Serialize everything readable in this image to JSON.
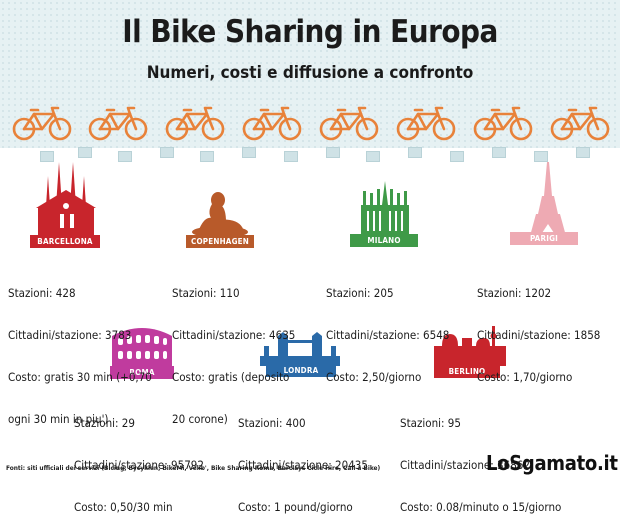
{
  "title": "Il Bike Sharing in Europa",
  "subtitle": "Numeri, costi e diffusione a confronto",
  "colors": {
    "bike": "#e8823a",
    "barcellona": "#c8252c",
    "copenhagen": "#b85a2a",
    "milano": "#3f9a48",
    "parigi": "#eeaab3",
    "roma": "#c03b9e",
    "londra": "#2a6aa8",
    "berlino": "#c8252c"
  },
  "cities": [
    {
      "name": "BARCELLONA",
      "lines": [
        "Stazioni: 428",
        "Cittadini/stazione: 3783",
        "Costo: gratis 30 min (+0,70",
        "ogni 30 min in piu')"
      ]
    },
    {
      "name": "COPENHAGEN",
      "lines": [
        "Stazioni: 110",
        "Cittadini/stazione: 4635",
        "Costo: gratis (deposito",
        "20 corone)"
      ]
    },
    {
      "name": "MILANO",
      "lines": [
        "Stazioni: 205",
        "Cittadini/stazione: 6548",
        "Costo: 2,50/giorno"
      ]
    },
    {
      "name": "PARIGI",
      "lines": [
        "Stazioni: 1202",
        "Cittadini/stazione: 1858",
        "Costo: 1,70/giorno"
      ]
    },
    {
      "name": "ROMA",
      "lines": [
        "Stazioni: 29",
        "Cittadini/stazione: 95792",
        "Costo: 0,50/30 min"
      ]
    },
    {
      "name": "LONDRA",
      "lines": [
        "Stazioni: 400",
        "Cittadini/stazione: 20435",
        "Costo: 1 pound/giorno"
      ]
    },
    {
      "name": "BERLINO",
      "lines": [
        "Stazioni: 95",
        "Cittadini/stazione: 36862",
        "Costo: 0.08/minuto o 15/giorno"
      ]
    }
  ],
  "footer": "Fonti: siti ufficiali dei servizi (Bicing, Bycyklen, BikeMi, Velib', Bike Sharing Roma, Barclays Cicle Hire, Call a Bike)",
  "brand": "LoSgamato.it"
}
